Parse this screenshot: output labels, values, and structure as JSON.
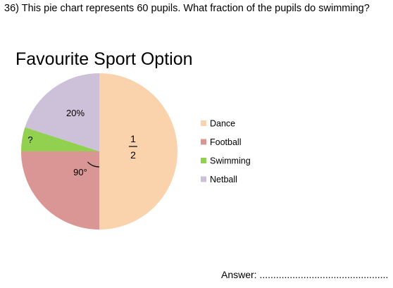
{
  "question": {
    "text": "36) This pie chart represents 60 pupils. What fraction of the pupils do swimming?"
  },
  "answer": {
    "label": "Answer:",
    "blank": "..............................................."
  },
  "chart_data": {
    "type": "pie",
    "title": "Favourite Sport Option",
    "total": 60,
    "slices": [
      {
        "name": "Dance",
        "degrees": 180,
        "color": "#fad3ad",
        "label": "1/2"
      },
      {
        "name": "Football",
        "degrees": 90,
        "color": "#da9694",
        "label": "90°"
      },
      {
        "name": "Swimming",
        "degrees": 18,
        "color": "#92d050",
        "label": "?"
      },
      {
        "name": "Netball",
        "degrees": 72,
        "color": "#ccc1d9",
        "label": "20%"
      }
    ],
    "fraction_label": {
      "numerator": "1",
      "denominator": "2"
    },
    "legend": {
      "position": "right",
      "entries": [
        "Dance",
        "Football",
        "Swimming",
        "Netball"
      ]
    }
  }
}
